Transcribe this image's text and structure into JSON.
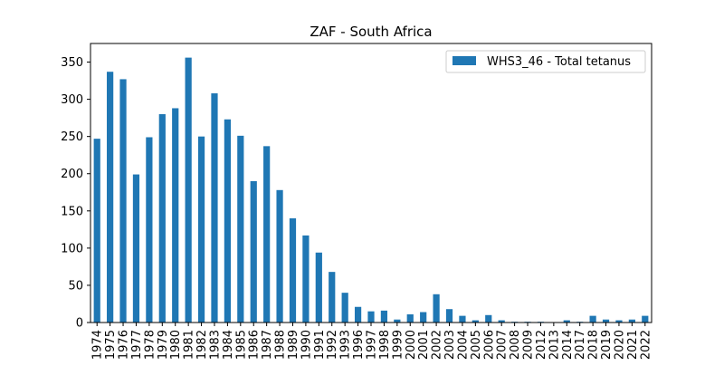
{
  "chart_data": {
    "type": "bar",
    "title": "ZAF - South Africa",
    "xlabel": "",
    "ylabel": "",
    "ylim": [
      0,
      375
    ],
    "yticks": [
      0,
      50,
      100,
      150,
      200,
      250,
      300,
      350
    ],
    "grid": false,
    "legend_position": "top-right",
    "colors": {
      "bar": "#1f77b4"
    },
    "categories": [
      "1974",
      "1975",
      "1976",
      "1977",
      "1978",
      "1979",
      "1980",
      "1981",
      "1982",
      "1983",
      "1984",
      "1985",
      "1986",
      "1987",
      "1988",
      "1989",
      "1990",
      "1991",
      "1992",
      "1993",
      "1996",
      "1997",
      "1998",
      "1999",
      "2000",
      "2001",
      "2002",
      "2003",
      "2004",
      "2005",
      "2006",
      "2007",
      "2008",
      "2009",
      "2012",
      "2013",
      "2014",
      "2017",
      "2018",
      "2019",
      "2020",
      "2021",
      "2022"
    ],
    "series": [
      {
        "name": "WHS3_46 - Total tetanus",
        "values": [
          247,
          337,
          327,
          199,
          249,
          280,
          288,
          356,
          250,
          308,
          273,
          251,
          190,
          237,
          178,
          140,
          117,
          94,
          68,
          40,
          21,
          15,
          16,
          4,
          11,
          14,
          38,
          18,
          9,
          3,
          10,
          3,
          1,
          1,
          1,
          0,
          3,
          1,
          9,
          4,
          3,
          4,
          9
        ]
      }
    ]
  }
}
